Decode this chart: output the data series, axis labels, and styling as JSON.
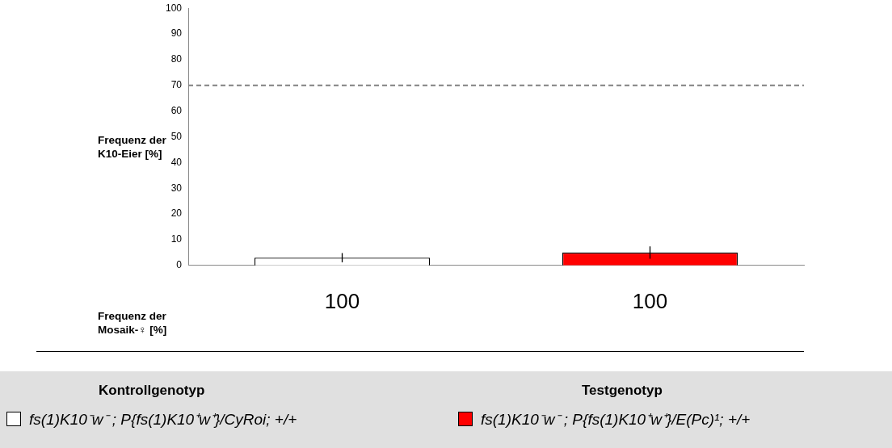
{
  "chart_data": {
    "type": "bar",
    "ylabel": "Frequenz der K10-Eier [%]",
    "xlabel": "Frequenz der Mosaik-♀ [%]",
    "categories": [
      "100",
      "100"
    ],
    "series": [
      {
        "name": "fs(1)K10⁻w⁻ ; P{fs(1)K10⁺w⁺}/CyRoi; +/+",
        "color": "#ffffff",
        "values": [
          3,
          null
        ],
        "errors": [
          1.8,
          null
        ]
      },
      {
        "name": "fs(1)K10⁻w⁻ ; P{fs(1)K10⁺w⁺}/E(Pc)¹; +/+",
        "color": "#ff0000",
        "values": [
          null,
          5
        ],
        "errors": [
          null,
          2.4
        ]
      }
    ],
    "ylim": [
      0,
      100
    ],
    "yticks": [
      0,
      10,
      20,
      30,
      40,
      50,
      60,
      70,
      80,
      90,
      100
    ],
    "ref_lines": [
      {
        "axis": "y",
        "value": 70,
        "color": "#808080",
        "line_style": "dashed"
      }
    ],
    "annotations": [
      "Kontrollgenotyp",
      "Testgenotyp"
    ],
    "grid": false,
    "legend": "bottom"
  }
}
